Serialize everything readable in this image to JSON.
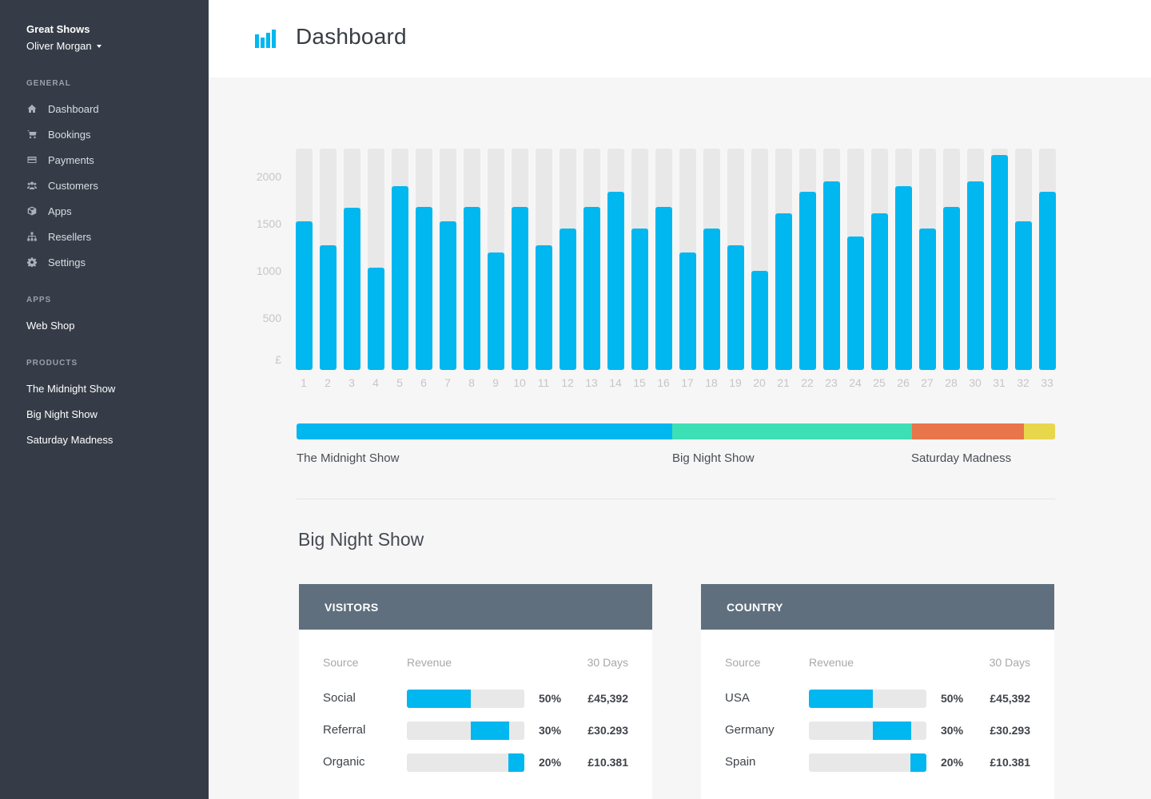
{
  "sidebar": {
    "brand": "Great Shows",
    "user": "Oliver Morgan",
    "general_title": "GENERAL",
    "general": [
      {
        "label": "Dashboard",
        "icon": "home-icon"
      },
      {
        "label": "Bookings",
        "icon": "cart-icon"
      },
      {
        "label": "Payments",
        "icon": "credit-card-icon"
      },
      {
        "label": "Customers",
        "icon": "users-icon"
      },
      {
        "label": "Apps",
        "icon": "cube-icon"
      },
      {
        "label": "Resellers",
        "icon": "sitemap-icon"
      },
      {
        "label": "Settings",
        "icon": "gear-icon"
      }
    ],
    "apps_title": "APPS",
    "apps": [
      {
        "label": "Web Shop"
      }
    ],
    "products_title": "PRODUCTS",
    "products": [
      {
        "label": "The Midnight Show"
      },
      {
        "label": "Big Night Show"
      },
      {
        "label": "Saturday Madness"
      }
    ]
  },
  "header": {
    "title": "Dashboard",
    "icon": "bar-chart-icon"
  },
  "chart_data": {
    "type": "bar",
    "categories": [
      "1",
      "2",
      "3",
      "4",
      "5",
      "6",
      "7",
      "8",
      "9",
      "10",
      "11",
      "12",
      "13",
      "14",
      "15",
      "16",
      "17",
      "18",
      "19",
      "20",
      "21",
      "22",
      "23",
      "24",
      "25",
      "26",
      "27",
      "28",
      "30",
      "31",
      "32",
      "33"
    ],
    "values": [
      1575,
      1320,
      1725,
      1085,
      1950,
      1730,
      1575,
      1730,
      1250,
      1730,
      1320,
      1500,
      1730,
      1890,
      1500,
      1730,
      1250,
      1500,
      1320,
      1050,
      1660,
      1890,
      2005,
      1420,
      1660,
      1950,
      1500,
      1730,
      2005,
      2285,
      1575,
      1890
    ],
    "ylabel": "£",
    "ylim": [
      0,
      2300
    ],
    "yticks": [
      {
        "label": "2000",
        "value": 2000
      },
      {
        "label": "1500",
        "value": 1500
      },
      {
        "label": "1000",
        "value": 1000
      },
      {
        "label": "500",
        "value": 500
      }
    ],
    "x_label_positions_note_placeholder": null,
    "bar_color": "#00b7ef",
    "track_color": "#e8e8e8"
  },
  "share_bar": {
    "segments": [
      {
        "name": "The Midnight Show",
        "value": 49.5,
        "color": "#00b7ef"
      },
      {
        "name": "Big Night Show",
        "value": 31.6,
        "color": "#3ddfb5"
      },
      {
        "name": "Saturday Madness",
        "value": 14.8,
        "color": "#e9754a"
      },
      {
        "name": "",
        "value": 4.1,
        "color": "#e8d74b"
      }
    ]
  },
  "section_title": "Big Night Show",
  "panels": [
    {
      "title": "VISITORS",
      "columns": [
        "Source",
        "Revenue",
        "30 Days"
      ],
      "rows": [
        {
          "name": "Social",
          "pct": "50%",
          "amount": "£45,392",
          "share": 0.5
        },
        {
          "name": "Referral",
          "pct": "30%",
          "amount": "£30.293",
          "share": 0.3
        },
        {
          "name": "Organic",
          "pct": "20%",
          "amount": "£10.381",
          "share": 0.2
        }
      ]
    },
    {
      "title": "COUNTRY",
      "columns": [
        "Source",
        "Revenue",
        "30 Days"
      ],
      "rows": [
        {
          "name": "USA",
          "pct": "50%",
          "amount": "£45,392",
          "share": 0.5
        },
        {
          "name": "Germany",
          "pct": "30%",
          "amount": "£30.293",
          "share": 0.3
        },
        {
          "name": "Spain",
          "pct": "20%",
          "amount": "£10.381",
          "share": 0.2
        }
      ]
    }
  ]
}
